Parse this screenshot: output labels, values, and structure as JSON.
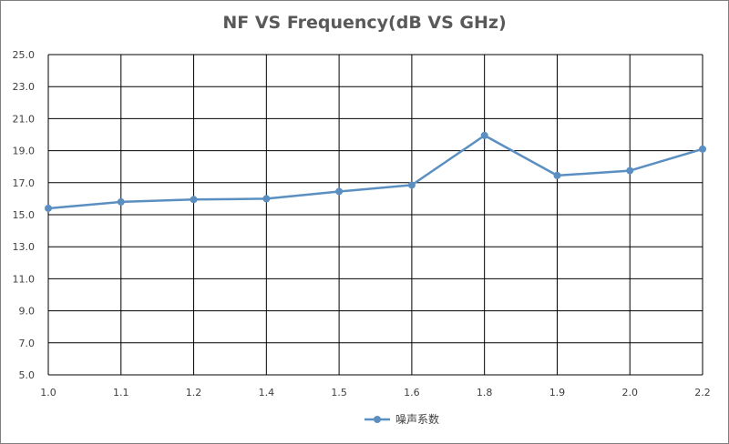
{
  "chart_data": {
    "type": "line",
    "title": "NF VS Frequency(dB VS GHz)",
    "xlabel": "",
    "ylabel": "",
    "categories": [
      "1.0",
      "1.1",
      "1.2",
      "1.4",
      "1.5",
      "1.6",
      "1.8",
      "1.9",
      "2.0",
      "2.2"
    ],
    "series": [
      {
        "name": "噪声系数",
        "values": [
          15.4,
          15.8,
          15.95,
          16.0,
          16.45,
          16.85,
          19.95,
          17.45,
          17.75,
          19.1
        ]
      }
    ],
    "ylim": [
      5.0,
      25.0
    ],
    "yticks": [
      "5.0",
      "7.0",
      "9.0",
      "11.0",
      "13.0",
      "15.0",
      "17.0",
      "19.0",
      "21.0",
      "23.0",
      "25.0"
    ],
    "grid": true,
    "legend": "bottom",
    "colors": {
      "series": "#5b8fc2",
      "grid": "#000000",
      "text": "#404040",
      "title": "#595959"
    }
  }
}
